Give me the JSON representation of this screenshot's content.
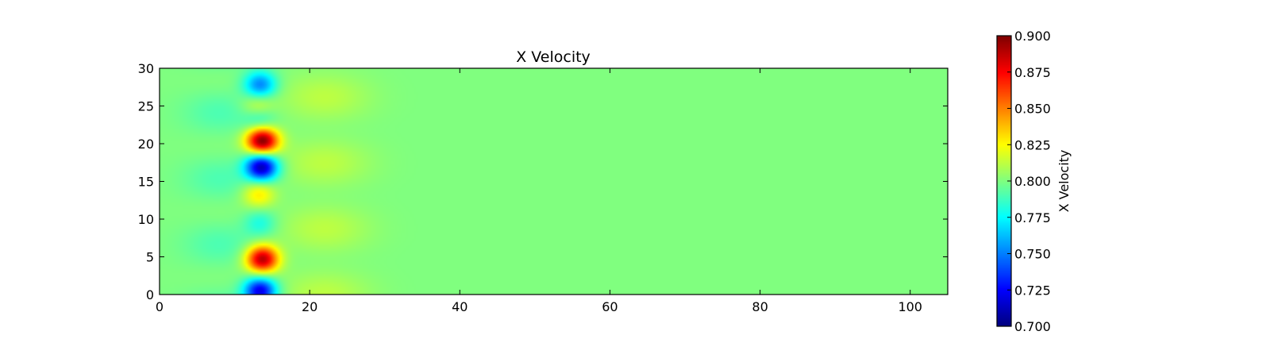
{
  "chart_data": {
    "type": "heatmap",
    "title": "X Velocity",
    "xlabel": "",
    "ylabel": "",
    "xlim": [
      0,
      105
    ],
    "ylim": [
      0,
      30
    ],
    "x_ticks": [
      "0",
      "20",
      "40",
      "60",
      "80",
      "100"
    ],
    "y_ticks": [
      "0",
      "5",
      "10",
      "15",
      "20",
      "25",
      "30"
    ],
    "colormap": "jet",
    "colorbar": {
      "label": "X Velocity",
      "min": 0.7,
      "max": 0.9,
      "ticks": [
        "0.700",
        "0.725",
        "0.750",
        "0.775",
        "0.800",
        "0.825",
        "0.850",
        "0.875",
        "0.900"
      ]
    },
    "background_value": 0.8,
    "features": [
      {
        "kind": "low",
        "x": 13.4,
        "y": 0.5,
        "value": 0.72
      },
      {
        "kind": "high",
        "x": 13.7,
        "y": 4.7,
        "value": 0.89
      },
      {
        "kind": "low",
        "x": 13.4,
        "y": 9.5,
        "value": 0.78
      },
      {
        "kind": "high",
        "x": 13.2,
        "y": 13.3,
        "value": 0.83
      },
      {
        "kind": "low",
        "x": 13.6,
        "y": 16.9,
        "value": 0.71
      },
      {
        "kind": "high",
        "x": 13.7,
        "y": 20.4,
        "value": 0.9
      },
      {
        "kind": "low",
        "x": 13.4,
        "y": 23.2,
        "value": 0.78
      },
      {
        "kind": "high",
        "x": 13.1,
        "y": 25.0,
        "value": 0.82
      },
      {
        "kind": "low",
        "x": 13.4,
        "y": 27.8,
        "value": 0.75
      }
    ]
  }
}
